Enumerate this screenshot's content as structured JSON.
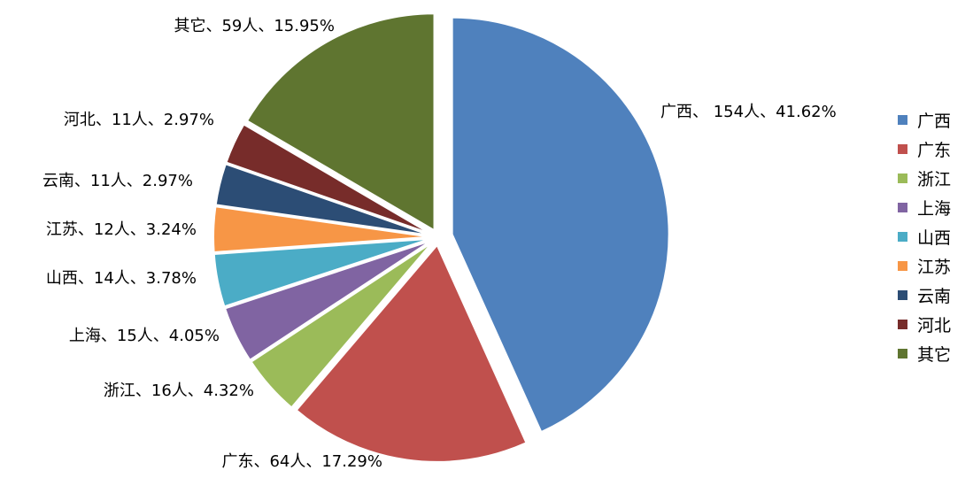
{
  "chart_data": {
    "type": "pie",
    "slices": [
      {
        "name": "广西",
        "count": 154,
        "percent": 41.62,
        "label": "广西、 154人、41.62%",
        "color": "#4F81BD"
      },
      {
        "name": "广东",
        "count": 64,
        "percent": 17.29,
        "label": "广东、64人、17.29%",
        "color": "#C0504D"
      },
      {
        "name": "浙江",
        "count": 16,
        "percent": 4.32,
        "label": "浙江、16人、4.32%",
        "color": "#9BBB59"
      },
      {
        "name": "上海",
        "count": 15,
        "percent": 4.05,
        "label": "上海、15人、4.05%",
        "color": "#8064A2"
      },
      {
        "name": "山西",
        "count": 14,
        "percent": 3.78,
        "label": "山西、14人、3.78%",
        "color": "#4BACC6"
      },
      {
        "name": "江苏",
        "count": 12,
        "percent": 3.24,
        "label": "江苏、12人、3.24%",
        "color": "#F79646"
      },
      {
        "name": "云南",
        "count": 11,
        "percent": 2.97,
        "label": "云南、11人、2.97%",
        "color": "#2C4D75"
      },
      {
        "name": "河北",
        "count": 11,
        "percent": 2.97,
        "label": "河北、11人、2.97%",
        "color": "#772C2A"
      },
      {
        "name": "其它",
        "count": 59,
        "percent": 15.95,
        "label": "其它、59人、15.95%",
        "color": "#5F7530"
      }
    ],
    "legend_position": "right",
    "legend": [
      "广西",
      "广东",
      "浙江",
      "上海",
      "山西",
      "江苏",
      "云南",
      "河北",
      "其它"
    ]
  }
}
